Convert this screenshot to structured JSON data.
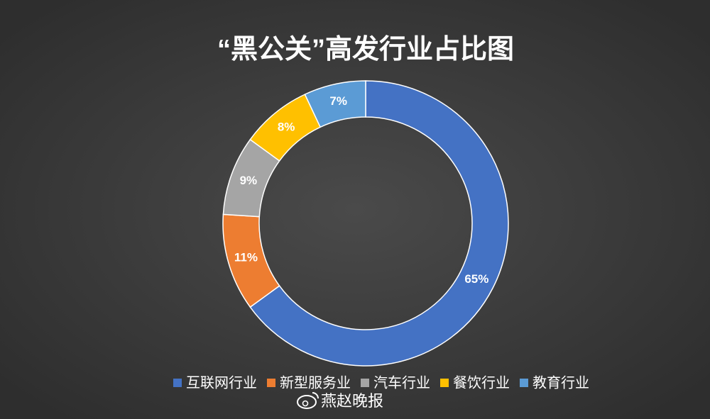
{
  "chart_data": {
    "type": "pie",
    "title": "“黑公关”高发行业占比图",
    "categories": [
      "互联网行业",
      "新型服务业",
      "汽车行业",
      "餐饮行业",
      "教育行业"
    ],
    "values": [
      65,
      11,
      9,
      8,
      7
    ],
    "value_labels": [
      "65%",
      "11%",
      "9%",
      "8%",
      "7%"
    ],
    "colors": [
      "#4472c4",
      "#ed7d31",
      "#a5a5a5",
      "#ffc000",
      "#5b9bd5"
    ],
    "legend": "bottom",
    "watermark": "燕赵晚报"
  }
}
